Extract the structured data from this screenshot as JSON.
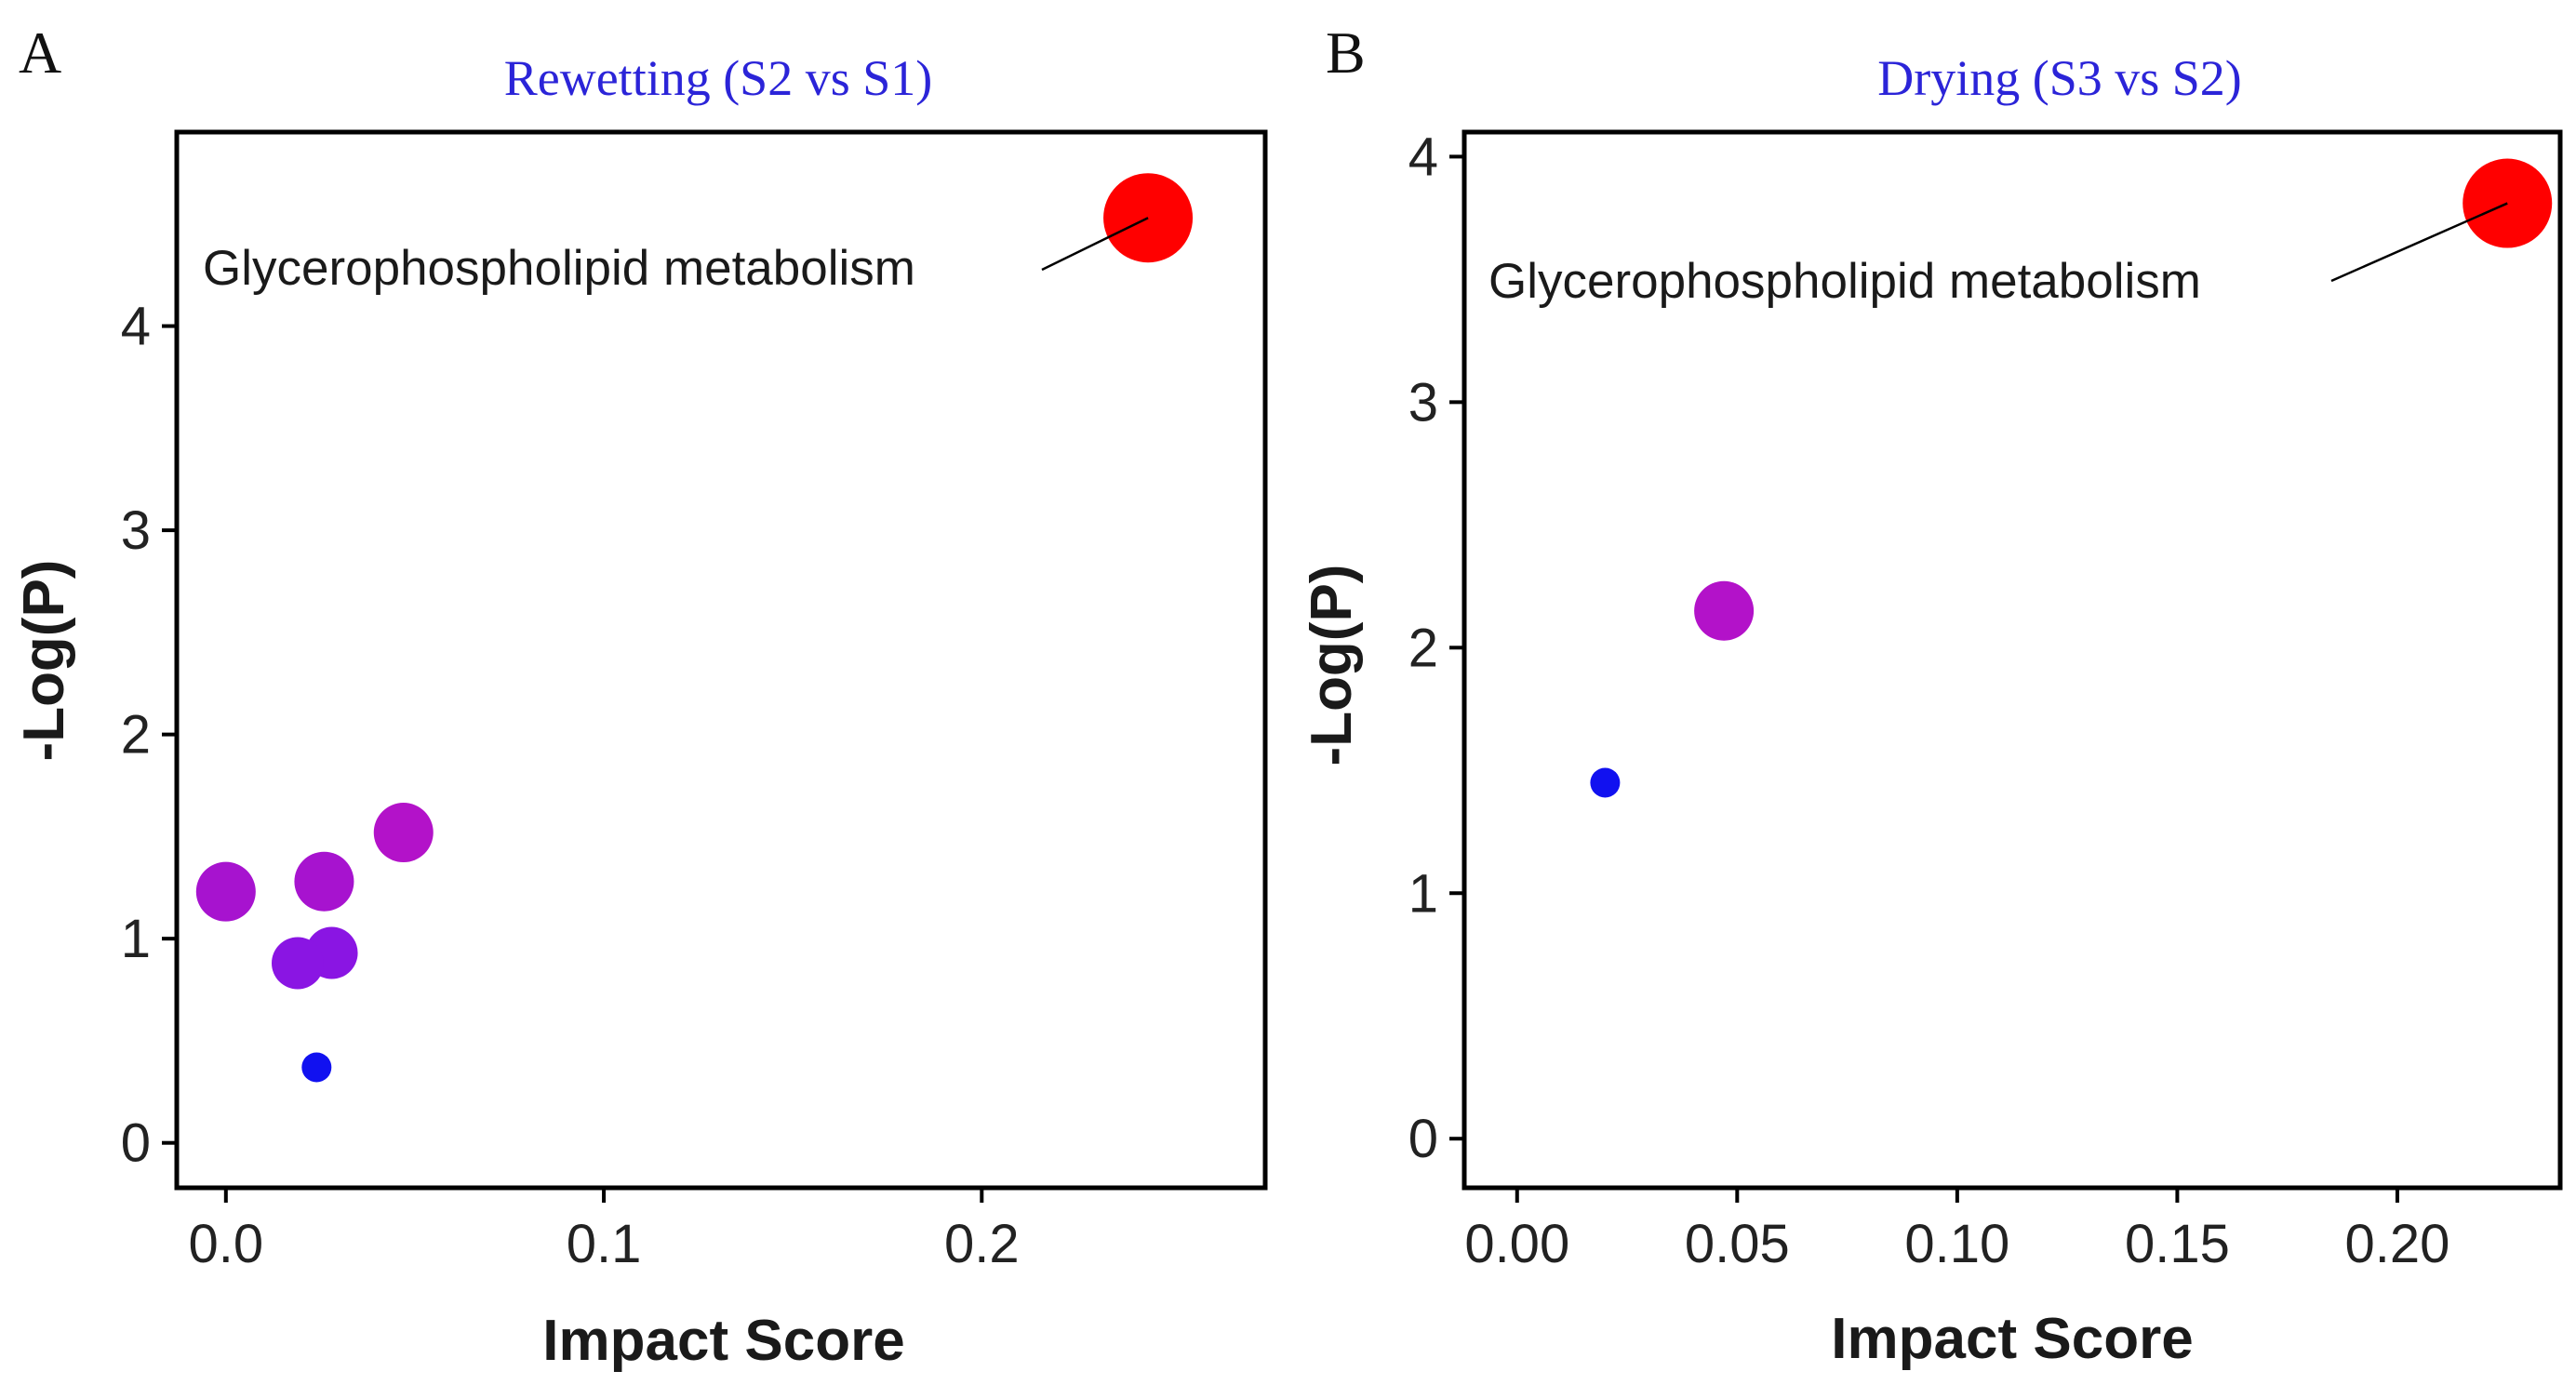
{
  "chart_data": [
    {
      "type": "scatter",
      "panel_label": "A",
      "title": "Rewetting (S2 vs S1)",
      "xlabel": "Impact Score",
      "ylabel": "-Log(P)",
      "xlim": [
        -0.013,
        0.275
      ],
      "ylim": [
        -0.22,
        4.95
      ],
      "xticks": [
        0.0,
        0.1,
        0.2
      ],
      "xtick_labels": [
        "0.0",
        "0.1",
        "0.2"
      ],
      "yticks": [
        0,
        1,
        2,
        3,
        4
      ],
      "ytick_labels": [
        "0",
        "1",
        "2",
        "3",
        "4"
      ],
      "grid": false,
      "points": [
        {
          "x": 0.244,
          "y": 4.53,
          "size": 5,
          "color": "#ff0000"
        },
        {
          "x": 0.047,
          "y": 1.52,
          "size": 3,
          "color": "#b312c9"
        },
        {
          "x": 0.026,
          "y": 1.28,
          "size": 3,
          "color": "#a713cf"
        },
        {
          "x": 0.0,
          "y": 1.23,
          "size": 3,
          "color": "#a713cf"
        },
        {
          "x": 0.028,
          "y": 0.93,
          "size": 2.5,
          "color": "#8a15e3"
        },
        {
          "x": 0.019,
          "y": 0.88,
          "size": 2.5,
          "color": "#8a15e3"
        },
        {
          "x": 0.024,
          "y": 0.37,
          "size": 1,
          "color": "#1111f0"
        }
      ],
      "annotations": [
        {
          "text": "Glycerophospholipid metabolism",
          "x": 0.244,
          "y": 4.53
        }
      ]
    },
    {
      "type": "scatter",
      "panel_label": "B",
      "title": "Drying (S3 vs S2)",
      "xlabel": "Impact Score",
      "ylabel": "-Log(P)",
      "xlim": [
        -0.012,
        0.237
      ],
      "ylim": [
        -0.2,
        4.1
      ],
      "xticks": [
        0.0,
        0.05,
        0.1,
        0.15,
        0.2
      ],
      "xtick_labels": [
        "0.00",
        "0.05",
        "0.10",
        "0.15",
        "0.20"
      ],
      "yticks": [
        0,
        1,
        2,
        3,
        4
      ],
      "ytick_labels": [
        "0",
        "1",
        "2",
        "3",
        "4"
      ],
      "grid": false,
      "points": [
        {
          "x": 0.225,
          "y": 3.81,
          "size": 5,
          "color": "#ff0000"
        },
        {
          "x": 0.047,
          "y": 2.15,
          "size": 3,
          "color": "#b312c9"
        },
        {
          "x": 0.02,
          "y": 1.45,
          "size": 1,
          "color": "#1111f0"
        }
      ],
      "annotations": [
        {
          "text": "Glycerophospholipid metabolism",
          "x": 0.225,
          "y": 3.81
        }
      ]
    }
  ]
}
